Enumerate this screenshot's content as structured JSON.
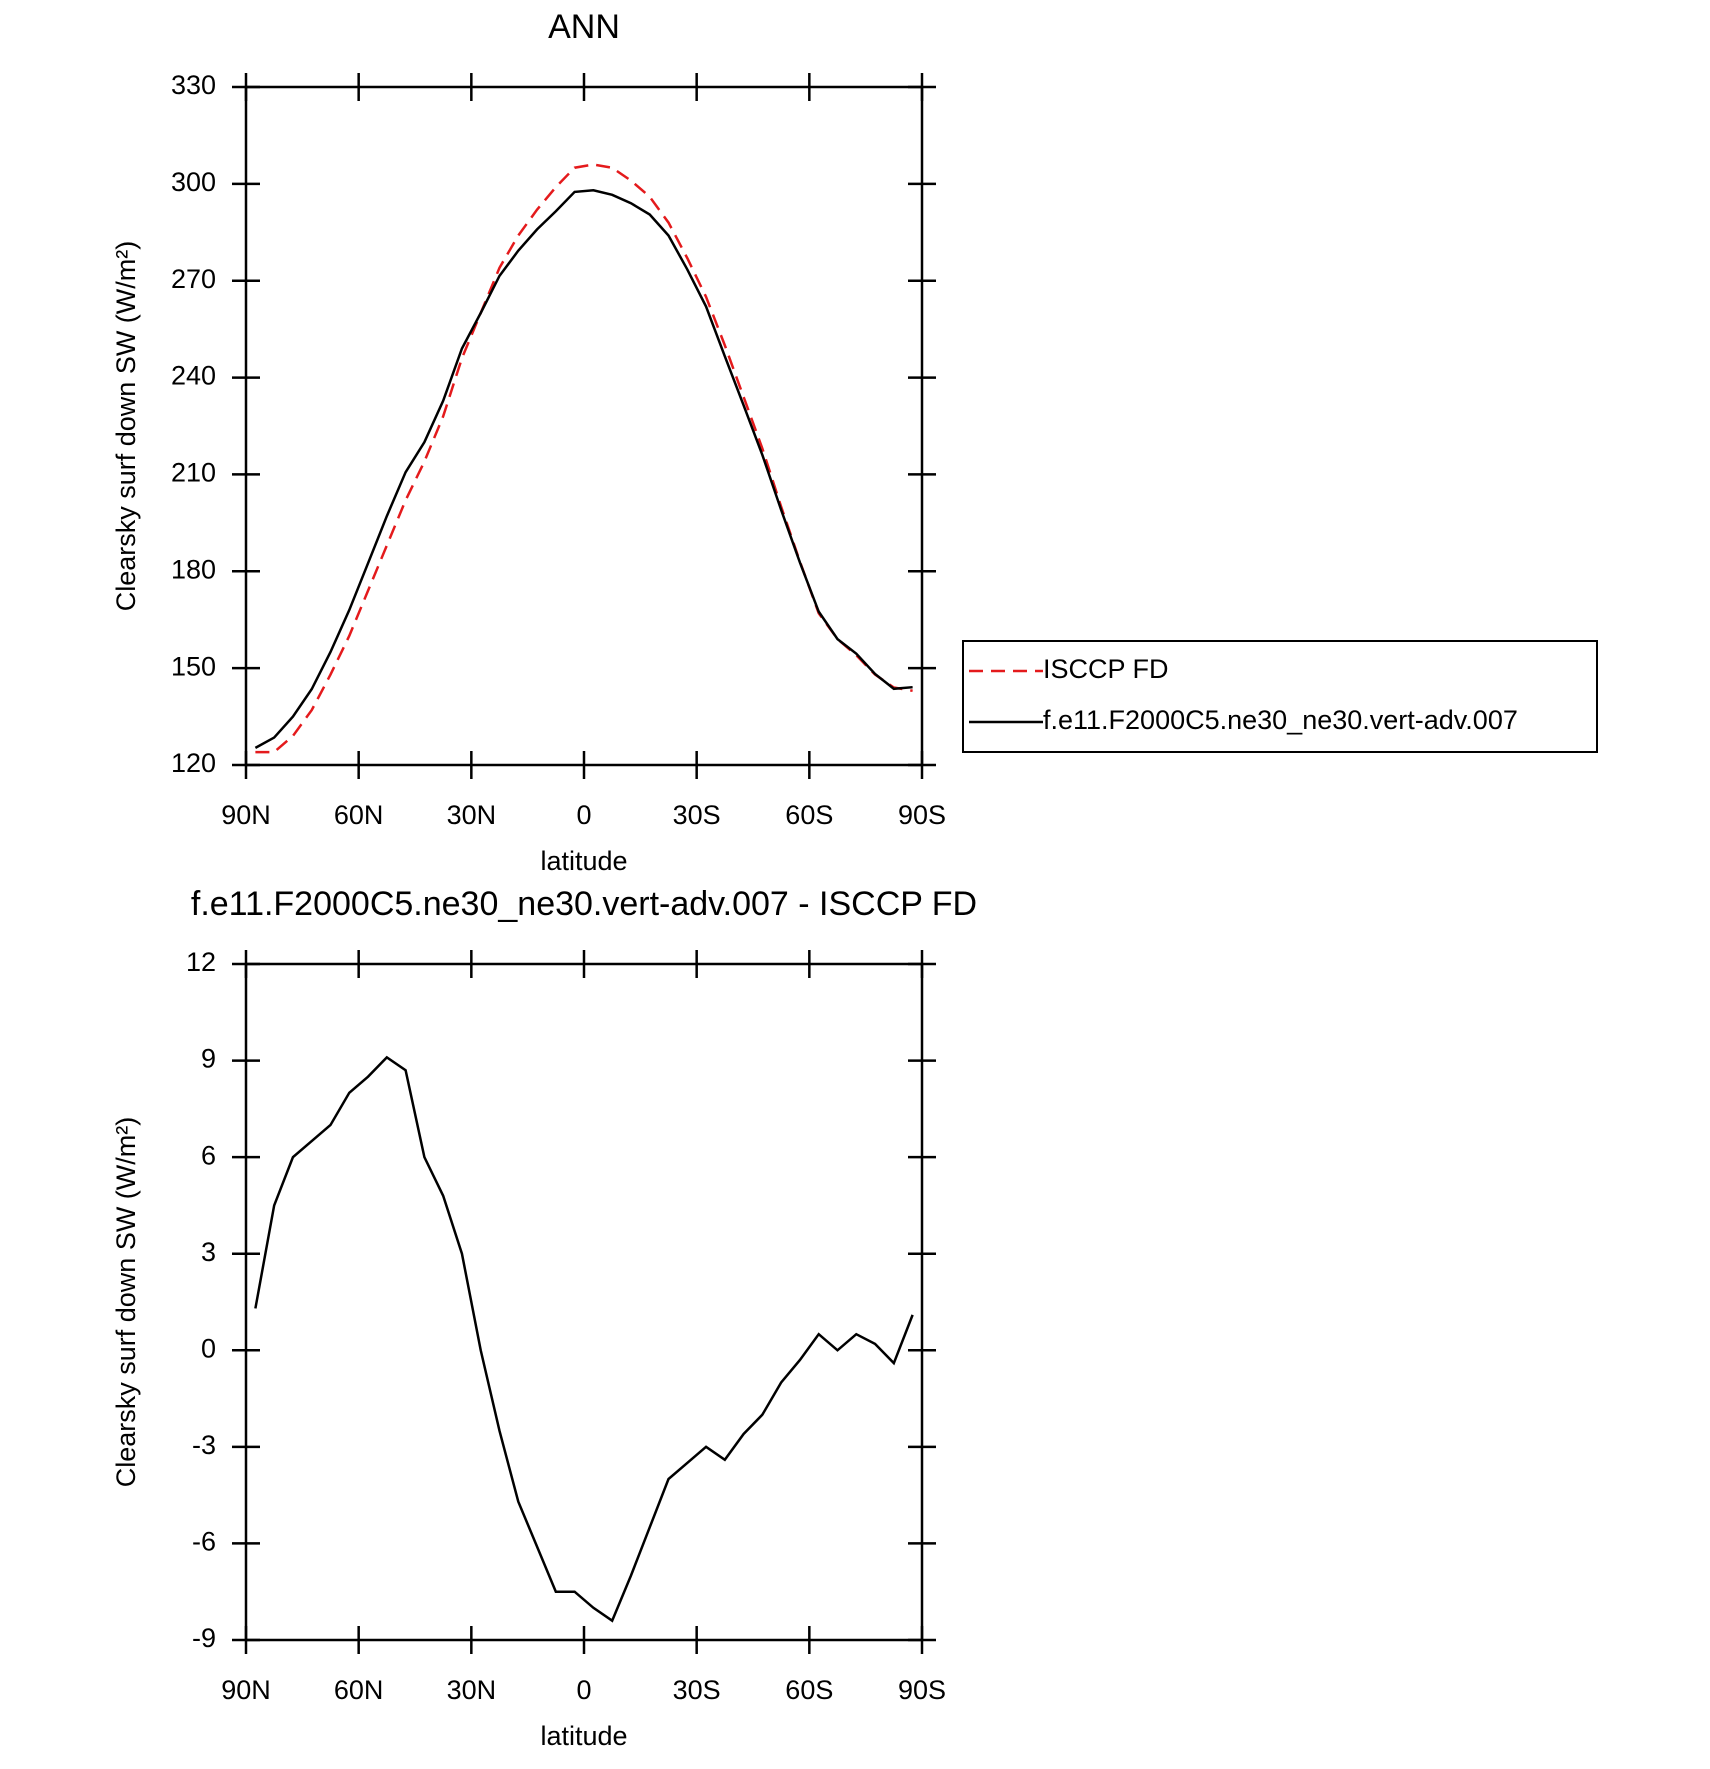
{
  "chart_data": [
    {
      "type": "line",
      "title": "ANN",
      "xlabel": "latitude",
      "ylabel": "Clearsky surf down SW (W/m²)",
      "x": [
        87.5,
        82.5,
        77.5,
        72.5,
        67.5,
        62.5,
        57.5,
        52.5,
        47.5,
        42.5,
        37.5,
        32.5,
        27.5,
        22.5,
        17.5,
        12.5,
        7.5,
        2.5,
        -2.5,
        -7.5,
        -12.5,
        -17.5,
        -22.5,
        -27.5,
        -32.5,
        -37.5,
        -42.5,
        -47.5,
        -52.5,
        -57.5,
        -62.5,
        -67.5,
        -72.5,
        -77.5,
        -82.5,
        -87.5
      ],
      "xlim": [
        90,
        -90
      ],
      "xticks": [
        {
          "value": 90,
          "label": "90N"
        },
        {
          "value": 60,
          "label": "60N"
        },
        {
          "value": 30,
          "label": "30N"
        },
        0,
        {
          "value": -30,
          "label": "30S"
        },
        {
          "value": -60,
          "label": "60S"
        },
        {
          "value": -90,
          "label": "90S"
        }
      ],
      "ylim": [
        120,
        330
      ],
      "yticks": [
        120,
        150,
        180,
        210,
        240,
        270,
        300,
        330
      ],
      "legend": "outside-right",
      "series": [
        {
          "name": "ISCCP FD",
          "color": "#e41a1c",
          "dash": true,
          "values": [
            124,
            124,
            129,
            137,
            148,
            160,
            174,
            188,
            202,
            214,
            228,
            246,
            260,
            274,
            284,
            292,
            299,
            305,
            306,
            305,
            301,
            296,
            288,
            277,
            265,
            250,
            234,
            218,
            200,
            183,
            167,
            159,
            154,
            148,
            144,
            143
          ]
        },
        {
          "name": "f.e11.F2000C5.ne30_ne30.vert-adv.007",
          "color": "#000000",
          "dash": false,
          "values": [
            125.3,
            128.5,
            135,
            143.5,
            155,
            168,
            182.5,
            197.1,
            210.7,
            220,
            232.8,
            249,
            260,
            271.5,
            279.3,
            285.9,
            291.5,
            297.5,
            298,
            296.6,
            294,
            290.5,
            284,
            273.5,
            262,
            246.6,
            231.4,
            216,
            199,
            182.7,
            167.5,
            159,
            154.5,
            148.2,
            143.6,
            144.1
          ]
        }
      ]
    },
    {
      "type": "line",
      "title": "f.e11.F2000C5.ne30_ne30.vert-adv.007 - ISCCP FD",
      "xlabel": "latitude",
      "ylabel": "Clearsky surf down SW (W/m²)",
      "x": [
        87.5,
        82.5,
        77.5,
        72.5,
        67.5,
        62.5,
        57.5,
        52.5,
        47.5,
        42.5,
        37.5,
        32.5,
        27.5,
        22.5,
        17.5,
        12.5,
        7.5,
        2.5,
        -2.5,
        -7.5,
        -12.5,
        -17.5,
        -22.5,
        -27.5,
        -32.5,
        -37.5,
        -42.5,
        -47.5,
        -52.5,
        -57.5,
        -62.5,
        -67.5,
        -72.5,
        -77.5,
        -82.5,
        -87.5
      ],
      "xlim": [
        90,
        -90
      ],
      "xticks": [
        {
          "value": 90,
          "label": "90N"
        },
        {
          "value": 60,
          "label": "60N"
        },
        {
          "value": 30,
          "label": "30N"
        },
        0,
        {
          "value": -30,
          "label": "30S"
        },
        {
          "value": -60,
          "label": "60S"
        },
        {
          "value": -90,
          "label": "90S"
        }
      ],
      "ylim": [
        -9,
        12
      ],
      "yticks": [
        -9,
        -6,
        -3,
        0,
        3,
        6,
        9,
        12
      ],
      "color": "#000000",
      "values": [
        1.3,
        4.5,
        6,
        6.5,
        7,
        8,
        8.5,
        9.1,
        8.7,
        6,
        4.8,
        3,
        0,
        -2.5,
        -4.7,
        -6.1,
        -7.5,
        -7.5,
        -8,
        -8.4,
        -7,
        -5.5,
        -4,
        -3.5,
        -3,
        -3.4,
        -2.6,
        -2,
        -1,
        -0.3,
        0.5,
        0,
        0.5,
        0.2,
        -0.4,
        1.1
      ]
    }
  ]
}
